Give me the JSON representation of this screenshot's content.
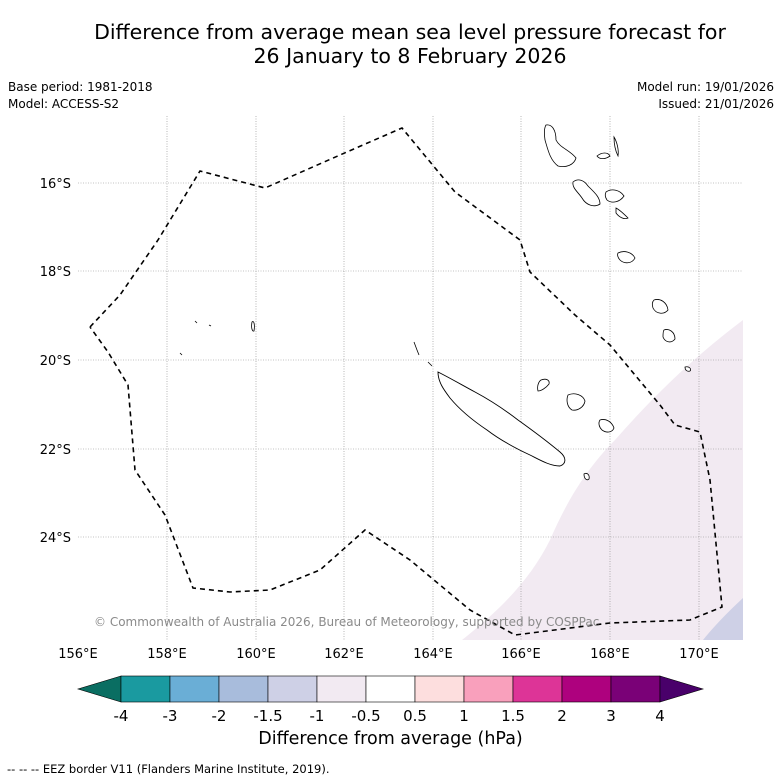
{
  "title_line1": "Difference from average mean sea level pressure forecast for",
  "title_line2": "26 January to 8 February 2026",
  "left_meta": {
    "base_period": "Base period: 1981-2018",
    "model": "Model: ACCESS-S2"
  },
  "right_meta": {
    "model_run": "Model run: 19/01/2026",
    "issued": "Issued: 21/01/2026"
  },
  "map": {
    "lat_labels": [
      "16°S",
      "18°S",
      "20°S",
      "22°S",
      "24°S"
    ],
    "lon_labels": [
      "156°E",
      "158°E",
      "160°E",
      "162°E",
      "164°E",
      "166°E",
      "168°E",
      "170°E"
    ],
    "copyright": "© Commonwealth of Australia 2026, Bureau of Meteorology, supported by COSPPac"
  },
  "colorbar": {
    "title": "Difference from average (hPa)",
    "tick_labels": [
      "-4",
      "-3",
      "-2",
      "-1.5",
      "-1",
      "-0.5",
      "0.5",
      "1",
      "1.5",
      "2",
      "3",
      "4"
    ],
    "colors": [
      "#0a6e62",
      "#1a9aa0",
      "#6aaed6",
      "#a8bcdc",
      "#ced0e6",
      "#f2eaf2",
      "#ffffff",
      "#fddede",
      "#f9a0bc",
      "#dd3497",
      "#ae017e",
      "#7a0177",
      "#49006a"
    ]
  },
  "footer": "-- -- -- EEZ border V11 (Flanders Marine Institute, 2019)."
}
